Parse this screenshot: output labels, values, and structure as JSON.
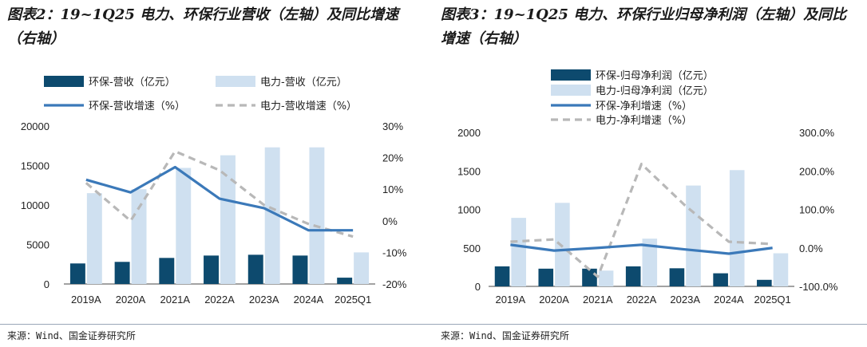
{
  "left": {
    "title": "图表2：19~1Q25 电力、环保行业营收（左轴）及同比增速（右轴）",
    "source": "来源：Wind、国金证券研究所"
  },
  "right": {
    "title": "图表3：19~1Q25 电力、环保行业归母净利润（左轴）及同比增速（右轴）",
    "source": "来源：Wind、国金证券研究所"
  },
  "colors": {
    "env_bar": "#0d4a6e",
    "power_bar": "#cfe0f0",
    "env_line": "#3b79b9",
    "power_line": "#b8b8b8"
  },
  "chart_data": [
    {
      "type": "bar",
      "categories": [
        "2019A",
        "2020A",
        "2021A",
        "2022A",
        "2023A",
        "2024A",
        "2025Q1"
      ],
      "series": [
        {
          "name": "环保-营收（亿元）",
          "type": "bar",
          "axis": "left",
          "values": [
            2600,
            2800,
            3300,
            3600,
            3700,
            3600,
            800
          ]
        },
        {
          "name": "电力-营收（亿元）",
          "type": "bar",
          "axis": "left",
          "values": [
            11500,
            12000,
            14700,
            16300,
            17300,
            17300,
            4000
          ]
        },
        {
          "name": "环保-营收增速（%）",
          "type": "line",
          "axis": "right",
          "values": [
            13,
            9,
            17,
            7,
            4,
            -3,
            -3
          ]
        },
        {
          "name": "电力-营收增速（%）",
          "type": "line",
          "axis": "right",
          "values": [
            12,
            0,
            22,
            16,
            5,
            -1,
            -5
          ]
        }
      ],
      "ylim_left": [
        0,
        20000
      ],
      "yticks_left": [
        "0",
        "5000",
        "10000",
        "15000",
        "20000"
      ],
      "ylim_right": [
        -20,
        30
      ],
      "yticks_right": [
        "-20%",
        "-10%",
        "0%",
        "10%",
        "20%",
        "30%"
      ],
      "legend": "top"
    },
    {
      "type": "bar",
      "categories": [
        "2019A",
        "2020A",
        "2021A",
        "2022A",
        "2023A",
        "2024A",
        "2025Q1"
      ],
      "series": [
        {
          "name": "环保-归母净利润（亿元）",
          "type": "bar",
          "axis": "left",
          "values": [
            260,
            230,
            230,
            260,
            235,
            170,
            85
          ]
        },
        {
          "name": "电力-归母净利润（亿元）",
          "type": "bar",
          "axis": "left",
          "values": [
            890,
            1085,
            205,
            620,
            1310,
            1510,
            430
          ]
        },
        {
          "name": "环保-净利增速（%）",
          "type": "line",
          "axis": "right",
          "values": [
            8,
            -7,
            0,
            8,
            -4,
            -15,
            0
          ]
        },
        {
          "name": "电力-净利增速（%）",
          "type": "line",
          "axis": "right",
          "values": [
            16,
            22,
            -75,
            218,
            110,
            16,
            10
          ]
        }
      ],
      "ylim_left": [
        0,
        2000
      ],
      "yticks_left": [
        "0",
        "500",
        "1000",
        "1500",
        "2000"
      ],
      "ylim_right": [
        -100,
        300
      ],
      "yticks_right": [
        "-100.0%",
        "0.0%",
        "100.0%",
        "200.0%",
        "300.0%"
      ],
      "legend": "top"
    }
  ]
}
